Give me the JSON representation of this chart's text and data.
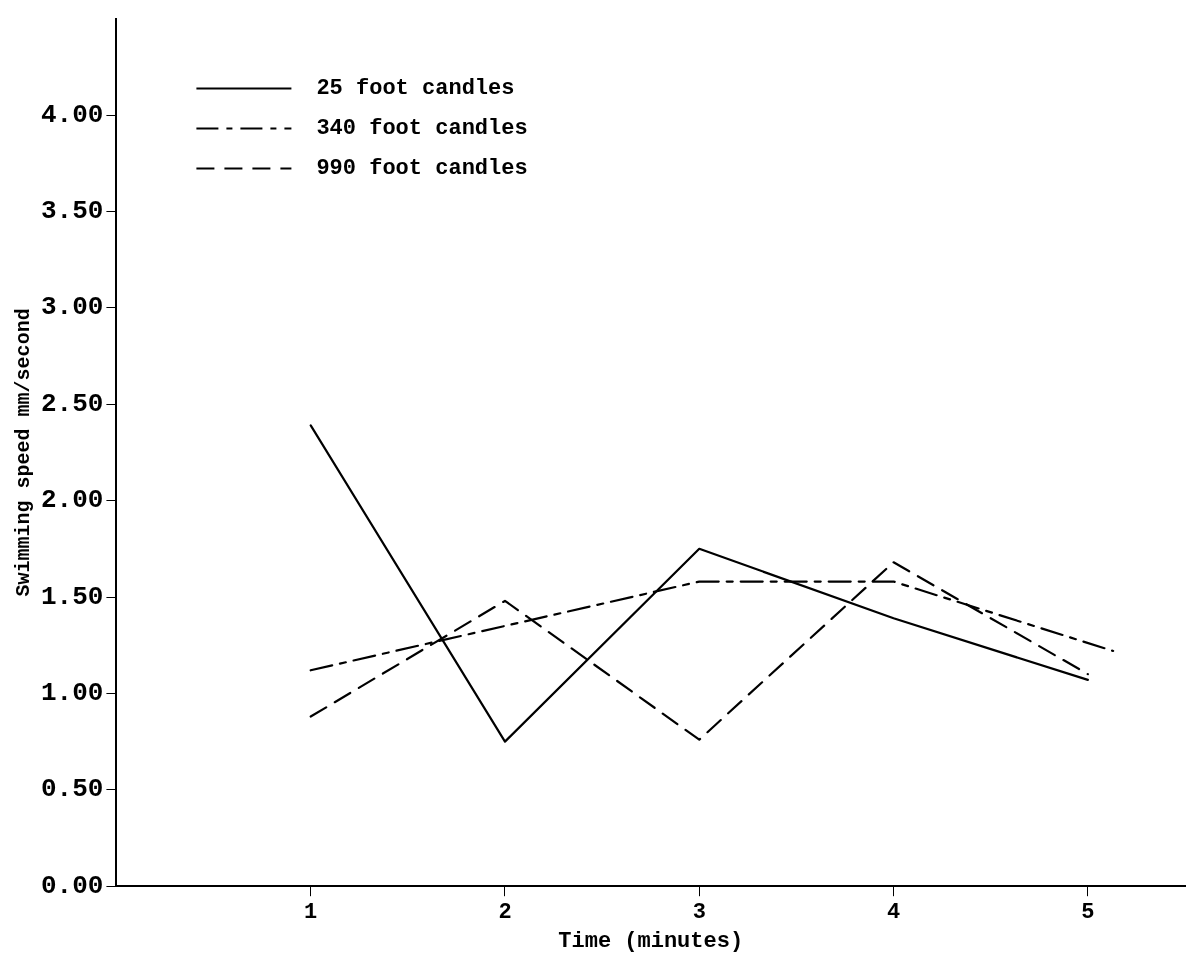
{
  "chart_data": {
    "type": "line",
    "xlabel": "Time (minutes)",
    "ylabel": "Swimming speed mm/second",
    "x": [
      1,
      2,
      3,
      4,
      5
    ],
    "series": [
      {
        "name": "25 foot candles",
        "color": "#000000",
        "line_style": "solid",
        "values": [
          2.39,
          0.75,
          1.75,
          1.39,
          1.07
        ]
      },
      {
        "name": "340 foot candles",
        "color": "#000000",
        "line_style": "dashdot",
        "x": [
          1,
          2,
          3,
          4,
          5.13
        ],
        "values": [
          1.12,
          1.35,
          1.58,
          1.58,
          1.22
        ]
      },
      {
        "name": "990 foot candles",
        "color": "#000000",
        "line_style": "dashed",
        "values": [
          0.88,
          1.48,
          0.76,
          1.68,
          1.1
        ]
      }
    ],
    "xlim": [
      0,
      5.5
    ],
    "xticks": [
      1,
      2,
      3,
      4,
      5
    ],
    "ylim": [
      0,
      4.5
    ],
    "yticks": [
      {
        "value": 0,
        "label": "0.00"
      },
      {
        "value": 0.5,
        "label": "0.50"
      },
      {
        "value": 1,
        "label": "1.00"
      },
      {
        "value": 1.5,
        "label": "1.50"
      },
      {
        "value": 2,
        "label": "2.00"
      },
      {
        "value": 2.5,
        "label": "2.50"
      },
      {
        "value": 3,
        "label": "3.00"
      },
      {
        "value": 3.5,
        "label": "3.50"
      },
      {
        "value": 4,
        "label": "4.00"
      }
    ],
    "grid": false,
    "legend": "top left",
    "marker": "none"
  }
}
